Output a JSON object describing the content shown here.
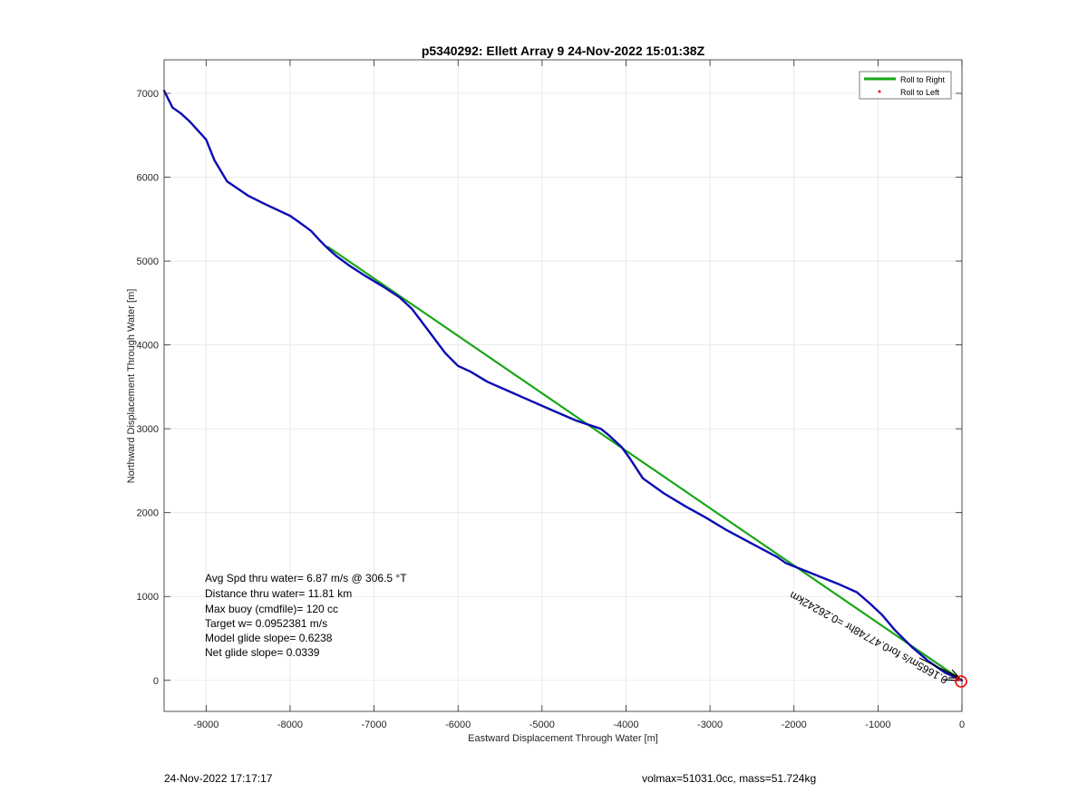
{
  "chart_data": {
    "type": "line",
    "title": "p5340292: Ellett Array 9 24-Nov-2022 15:01:38Z",
    "xlabel": "Eastward Displacement Through Water [m]",
    "ylabel": "Northward Displacement Through Water [m]",
    "xlim": [
      -9500,
      0
    ],
    "ylim": [
      -370,
      7400
    ],
    "xticks": [
      -9000,
      -8000,
      -7000,
      -6000,
      -5000,
      -4000,
      -3000,
      -2000,
      -1000,
      0
    ],
    "yticks": [
      0,
      1000,
      2000,
      3000,
      4000,
      5000,
      6000,
      7000
    ],
    "grid": true,
    "legend_position": "top-right",
    "legend": [
      {
        "label": "Roll to Right",
        "color": "#17a617",
        "marker": "line"
      },
      {
        "label": "Roll to Left",
        "color": "#ff0000",
        "marker": "dot"
      }
    ],
    "series": [
      {
        "color": "#17a617",
        "x": [
          -7550,
          0
        ],
        "y": [
          5170,
          0
        ]
      },
      {
        "color": "#0b0bb4",
        "x": [
          -9500,
          -9400,
          -9300,
          -9200,
          -9000,
          -8900,
          -8750,
          -8500,
          -8300,
          -8000,
          -7900,
          -7750,
          -7650,
          -7550,
          -7450,
          -7300,
          -7100,
          -6900,
          -6700,
          -6550,
          -6450,
          -6300,
          -6150,
          -6000,
          -5850,
          -5650,
          -5400,
          -5150,
          -4900,
          -4600,
          -4300,
          -4200,
          -4050,
          -3950,
          -3800,
          -3550,
          -3300,
          -3050,
          -2800,
          -2500,
          -2200,
          -2100,
          -1900,
          -1650,
          -1450,
          -1250,
          -1100,
          -950,
          -800,
          -600,
          -400,
          -200,
          0
        ],
        "y": [
          7030,
          6830,
          6760,
          6670,
          6450,
          6200,
          5950,
          5780,
          5680,
          5540,
          5470,
          5360,
          5250,
          5150,
          5060,
          4950,
          4820,
          4700,
          4570,
          4430,
          4300,
          4100,
          3900,
          3750,
          3680,
          3560,
          3450,
          3340,
          3230,
          3100,
          3000,
          2920,
          2780,
          2640,
          2410,
          2230,
          2080,
          1940,
          1790,
          1630,
          1470,
          1400,
          1320,
          1220,
          1140,
          1050,
          920,
          780,
          600,
          400,
          230,
          90,
          0
        ]
      }
    ],
    "annotations": [
      "Avg Spd thru water=  6.87 m/s @ 306.5 °T",
      "Distance thru water= 11.81 km",
      "Max buoy (cmdfile)= 120 cc",
      "Target w= 0.0952381 m/s",
      "Model glide slope= 0.6238",
      "Net glide slope= 0.0339"
    ],
    "rotated_label": "0.1665m/s for0.47748hr =0.26242km"
  },
  "footer": {
    "date": "24-Nov-2022 17:17:17",
    "info": "volmax=51031.0cc, mass=51.724kg"
  }
}
